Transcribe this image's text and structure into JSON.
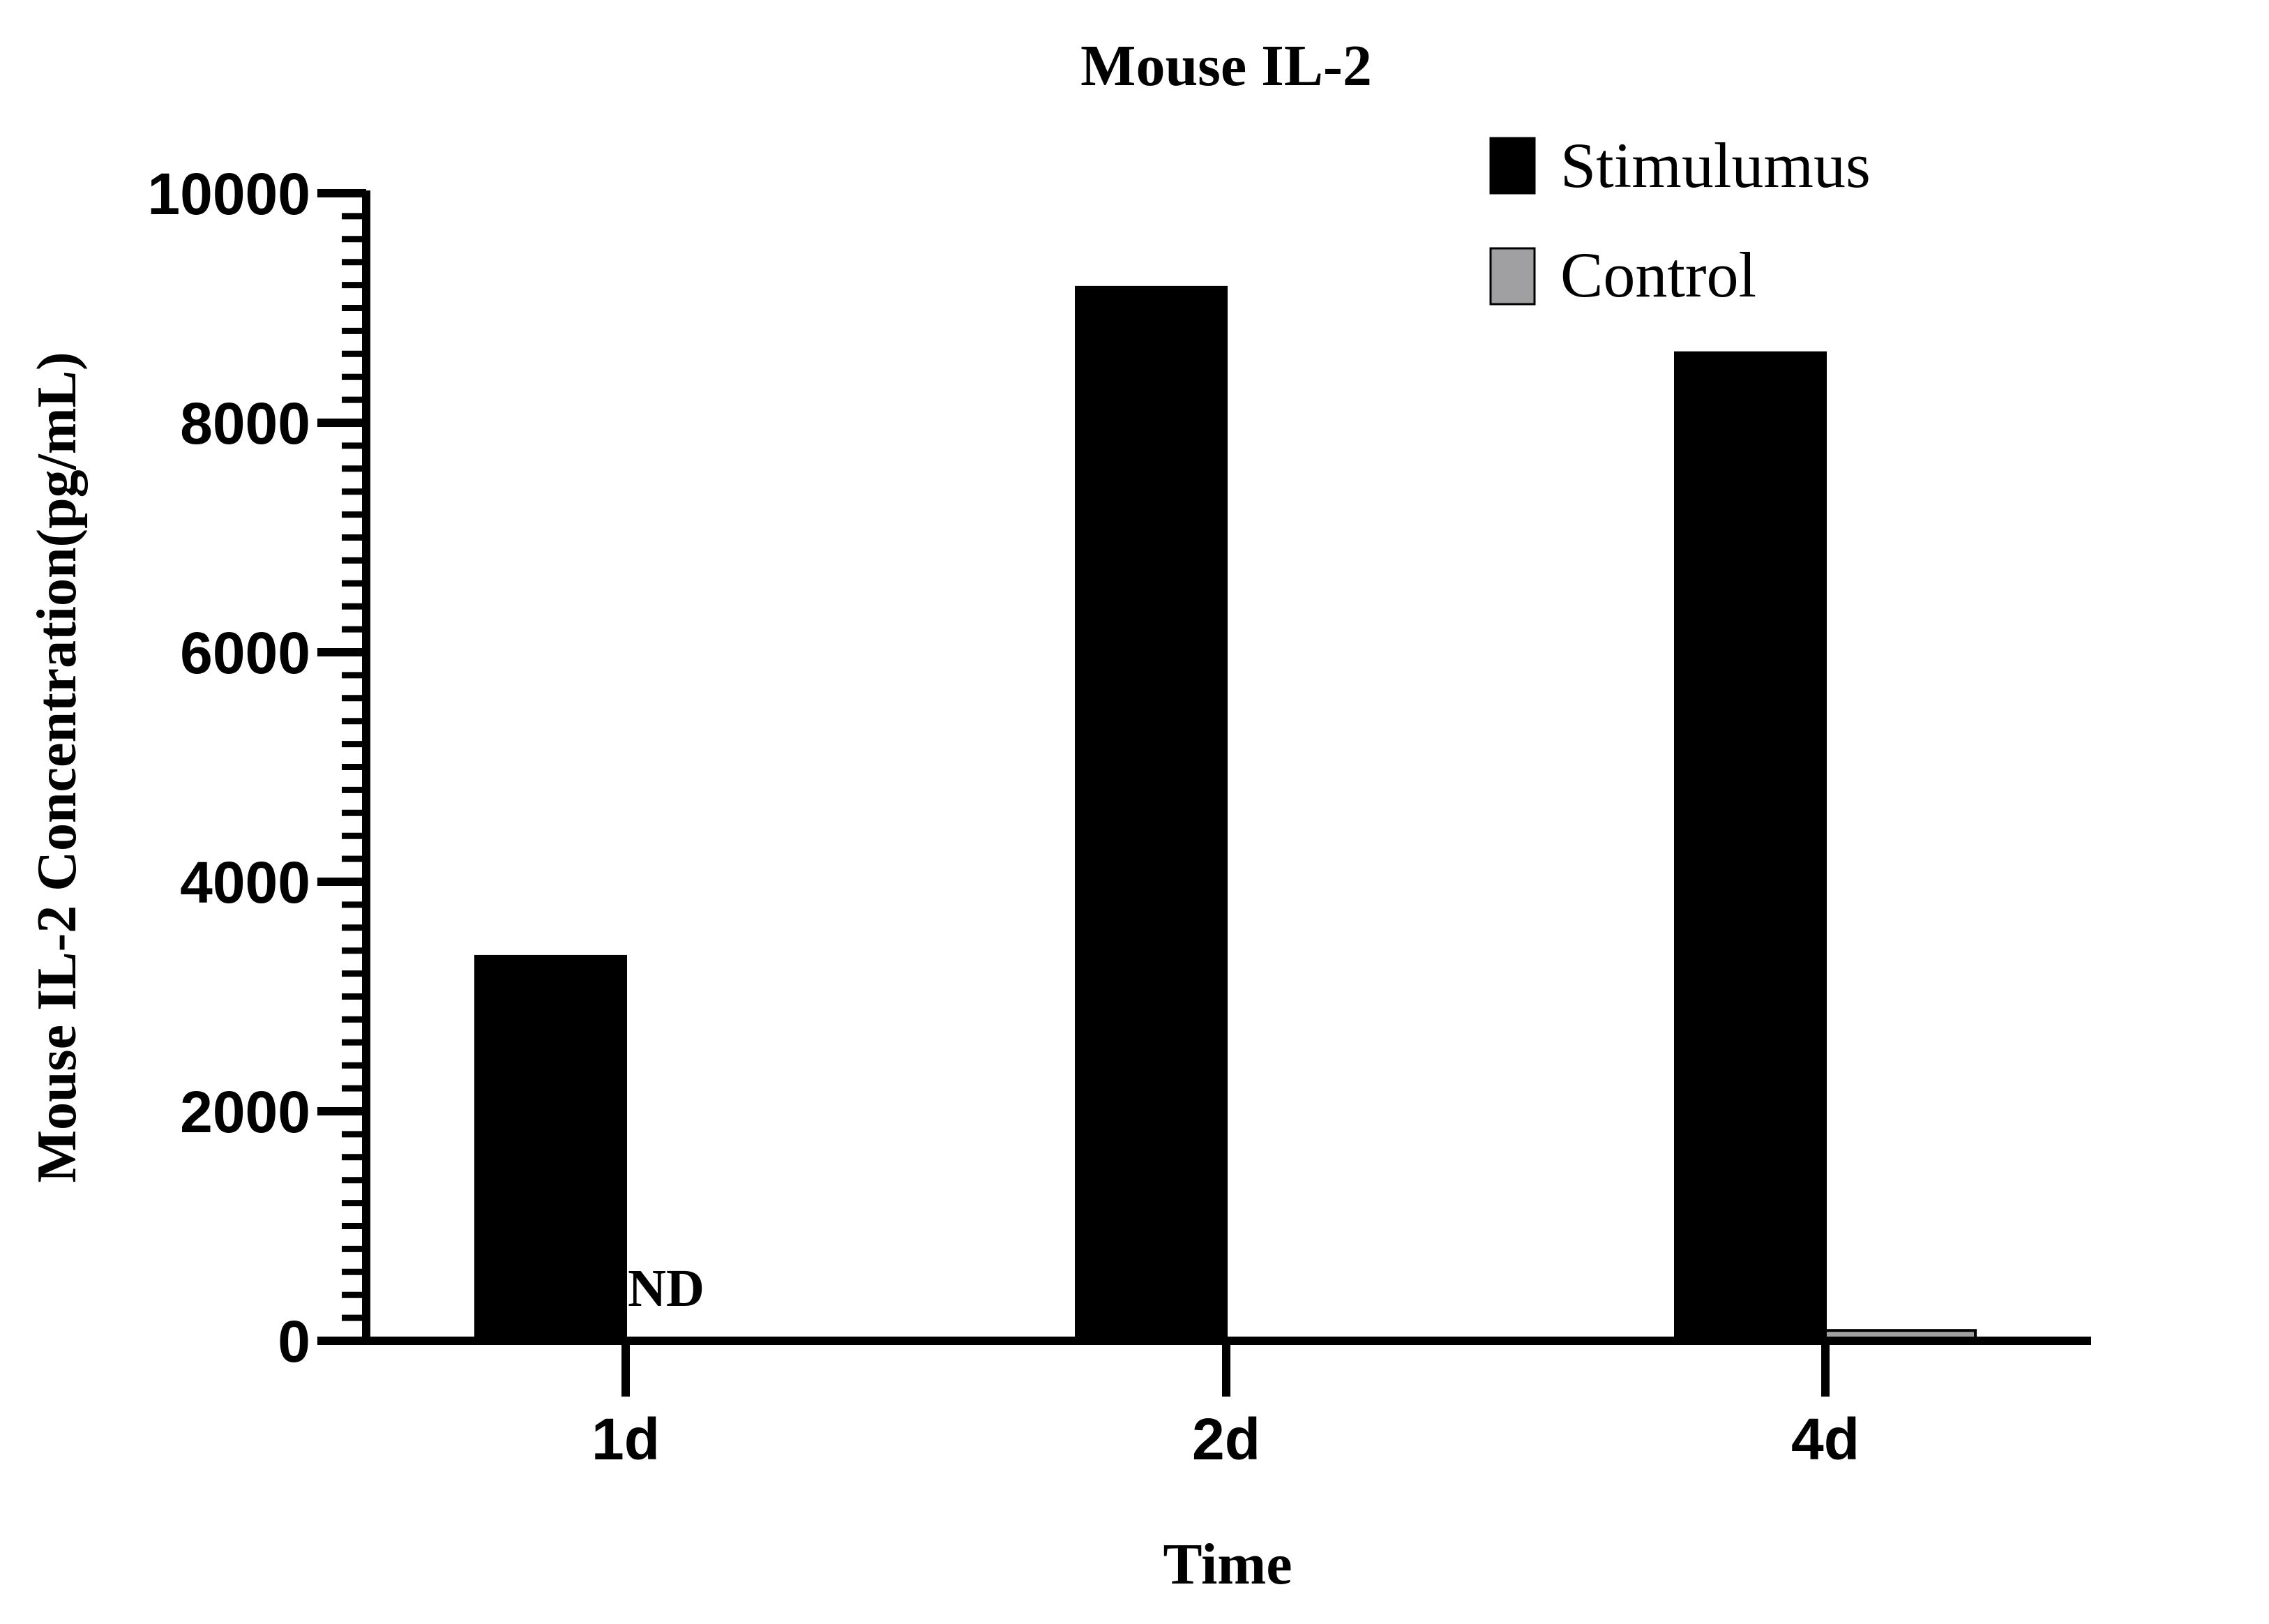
{
  "chart_data": {
    "type": "bar",
    "title": "Mouse IL-2",
    "xlabel": "Time",
    "ylabel": "Mouse IL-2 Concentration(pg/mL)",
    "categories": [
      "1d",
      "2d",
      "4d"
    ],
    "ylim": [
      0,
      10000
    ],
    "yticks": [
      "0",
      "2000",
      "4000",
      "6000",
      "8000",
      "10000"
    ],
    "minor_tick_step": 200,
    "grid": false,
    "legend_position": "top-right",
    "series": [
      {
        "name": "Stimulumus",
        "values": [
          3350,
          9180,
          8610
        ],
        "color": "#000000"
      },
      {
        "name": "Control",
        "values": [
          0,
          0,
          90
        ],
        "color": "#a0a0a2"
      }
    ],
    "annotations": [
      {
        "category": "1d",
        "series": "Control",
        "text": "ND"
      }
    ]
  }
}
